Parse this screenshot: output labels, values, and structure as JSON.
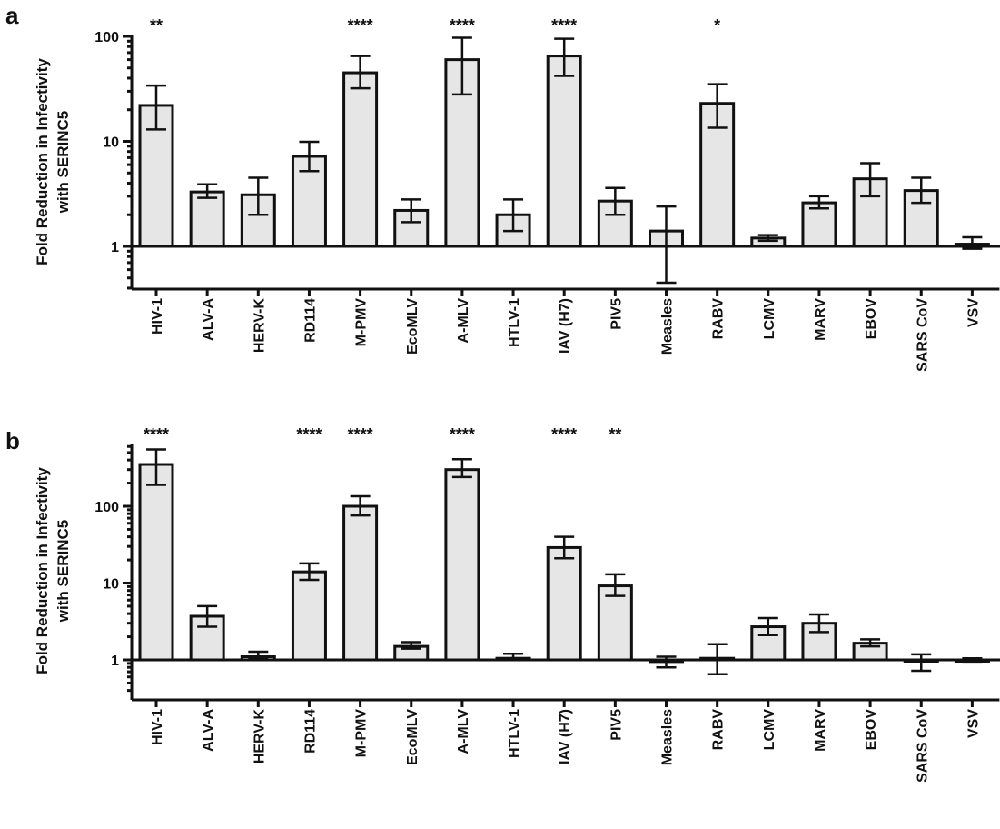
{
  "chart_data": [
    {
      "panel": "a",
      "type": "bar",
      "scale": "log",
      "ylabel_line1": "Fold Reduction in Infectivity",
      "ylabel_line2": "with SERINC5",
      "ylim": [
        0.4,
        100
      ],
      "yticks": [
        {
          "value": 1,
          "label": "1"
        },
        {
          "value": 10,
          "label": "10"
        },
        {
          "value": 100,
          "label": "100"
        }
      ],
      "categories": [
        "HIV-1",
        "ALV-A",
        "HERV-K",
        "RD114",
        "M-PMV",
        "EcoMLV",
        "A-MLV",
        "HTLV-1",
        "IAV (H7)",
        "PIV5",
        "Measles",
        "RABV",
        "LCMV",
        "MARV",
        "EBOV",
        "SARS CoV",
        "VSV"
      ],
      "values": [
        22,
        3.3,
        3.1,
        7.2,
        45,
        2.2,
        60,
        2.0,
        65,
        2.7,
        1.4,
        23,
        1.2,
        2.6,
        4.4,
        3.4,
        1.05
      ],
      "err_low": [
        13,
        2.9,
        2.0,
        5.2,
        32,
        1.7,
        28,
        1.4,
        42,
        2.0,
        0.45,
        13.5,
        1.13,
        2.3,
        3.0,
        2.6,
        0.95
      ],
      "err_high": [
        34,
        3.9,
        4.5,
        9.9,
        65,
        2.8,
        97,
        2.8,
        95,
        3.6,
        2.4,
        35,
        1.28,
        3.0,
        6.2,
        4.5,
        1.22
      ],
      "significance": [
        "**",
        "",
        "",
        "",
        "****",
        "",
        "****",
        "",
        "****",
        "",
        "",
        "*",
        "",
        "",
        "",
        "",
        ""
      ]
    },
    {
      "panel": "b",
      "type": "bar",
      "scale": "log",
      "ylabel_line1": "Fold Reduction in Infectivity",
      "ylabel_line2": "with SERINC5",
      "ylim": [
        0.4,
        600
      ],
      "yticks": [
        {
          "value": 1,
          "label": "1"
        },
        {
          "value": 10,
          "label": "10"
        },
        {
          "value": 100,
          "label": "100"
        }
      ],
      "categories": [
        "HIV-1",
        "ALV-A",
        "HERV-K",
        "RD114",
        "M-PMV",
        "EcoMLV",
        "A-MLV",
        "HTLV-1",
        "IAV (H7)",
        "PIV5",
        "Measles",
        "RABV",
        "LCMV",
        "MARV",
        "EBOV",
        "SARS CoV",
        "VSV"
      ],
      "values": [
        350,
        3.7,
        1.1,
        14,
        100,
        1.5,
        300,
        1.05,
        29,
        9.2,
        0.95,
        1.05,
        2.7,
        3.0,
        1.65,
        0.97,
        1.0
      ],
      "err_low": [
        190,
        2.7,
        1.03,
        11,
        76,
        1.4,
        240,
        1.0,
        21,
        6.8,
        0.8,
        0.65,
        2.1,
        2.3,
        1.5,
        0.72,
        0.95
      ],
      "err_high": [
        550,
        5.0,
        1.28,
        18,
        135,
        1.7,
        410,
        1.2,
        40,
        13,
        1.1,
        1.6,
        3.5,
        3.9,
        1.85,
        1.18,
        1.05
      ],
      "significance": [
        "****",
        "",
        "",
        "****",
        "****",
        "",
        "****",
        "",
        "****",
        "**",
        "",
        "",
        "",
        "",
        "",
        "",
        ""
      ]
    }
  ]
}
